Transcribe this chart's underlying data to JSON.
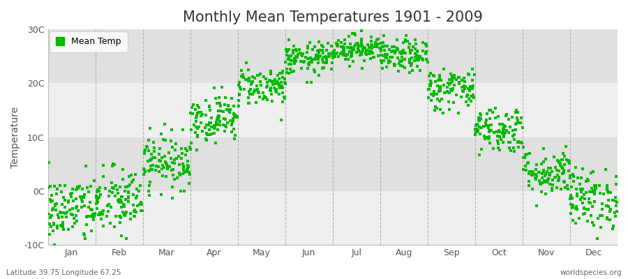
{
  "title": "Monthly Mean Temperatures 1901 - 2009",
  "ylabel": "Temperature",
  "months": [
    "Jan",
    "Feb",
    "Mar",
    "Apr",
    "May",
    "Jun",
    "Jul",
    "Aug",
    "Sep",
    "Oct",
    "Nov",
    "Dec"
  ],
  "mean_temps": [
    -3.5,
    -2.0,
    5.5,
    13.5,
    19.5,
    24.5,
    26.5,
    25.0,
    19.0,
    11.5,
    3.5,
    -1.5
  ],
  "std_temps": [
    3.2,
    3.2,
    2.5,
    2.2,
    1.8,
    1.5,
    1.3,
    1.5,
    2.0,
    2.2,
    2.2,
    2.8
  ],
  "n_years": 109,
  "ylim": [
    -10,
    30
  ],
  "yticks": [
    -10,
    0,
    10,
    20,
    30
  ],
  "ytick_labels": [
    "-10C",
    "0C",
    "10C",
    "20C",
    "30C"
  ],
  "dot_color": "#00BB00",
  "dot_size": 10,
  "band_color_light": "#EFEFEF",
  "band_color_dark": "#E0E0E0",
  "outer_background": "#FFFFFF",
  "vline_color": "#999999",
  "title_fontsize": 15,
  "axis_fontsize": 10,
  "tick_fontsize": 9,
  "legend_label": "Mean Temp",
  "footer_left": "Latitude 39.75 Longitude 67.25",
  "footer_right": "worldspecies.org",
  "seed": 42
}
